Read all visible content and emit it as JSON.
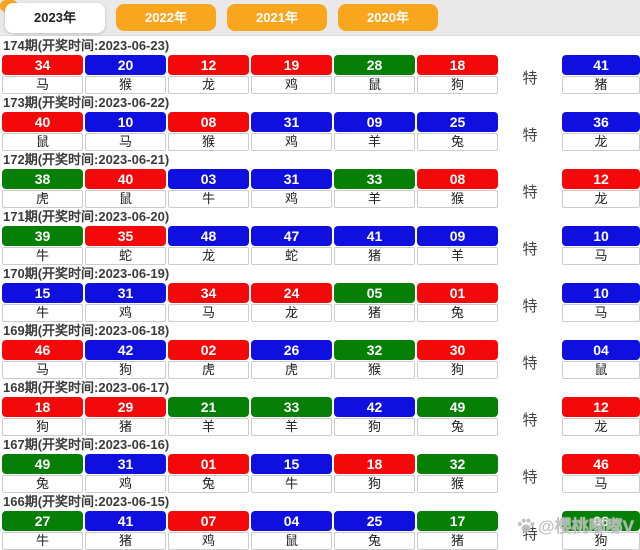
{
  "tabbar": {
    "tabs": [
      {
        "label": "2023年",
        "active": true
      },
      {
        "label": "2022年",
        "active": false
      },
      {
        "label": "2021年",
        "active": false
      },
      {
        "label": "2020年",
        "active": false
      }
    ]
  },
  "special_label": "特",
  "colors": {
    "red": "#f30909",
    "blue": "#0f0fe0",
    "green": "#067f06",
    "orange": "#f9a51e"
  },
  "watermark": {
    "icon": "paw-icon",
    "text": "@樱桃嘟嘟V"
  },
  "draws": [
    {
      "title": "174期(开奖时间:2023-06-23)",
      "numbers": [
        {
          "value": "34",
          "zodiac": "马",
          "color": "red"
        },
        {
          "value": "20",
          "zodiac": "猴",
          "color": "blue"
        },
        {
          "value": "12",
          "zodiac": "龙",
          "color": "red"
        },
        {
          "value": "19",
          "zodiac": "鸡",
          "color": "red"
        },
        {
          "value": "28",
          "zodiac": "鼠",
          "color": "green"
        },
        {
          "value": "18",
          "zodiac": "狗",
          "color": "red"
        }
      ],
      "special": {
        "value": "41",
        "zodiac": "猪",
        "color": "blue"
      }
    },
    {
      "title": "173期(开奖时间:2023-06-22)",
      "numbers": [
        {
          "value": "40",
          "zodiac": "鼠",
          "color": "red"
        },
        {
          "value": "10",
          "zodiac": "马",
          "color": "blue"
        },
        {
          "value": "08",
          "zodiac": "猴",
          "color": "red"
        },
        {
          "value": "31",
          "zodiac": "鸡",
          "color": "blue"
        },
        {
          "value": "09",
          "zodiac": "羊",
          "color": "blue"
        },
        {
          "value": "25",
          "zodiac": "兔",
          "color": "blue"
        }
      ],
      "special": {
        "value": "36",
        "zodiac": "龙",
        "color": "blue"
      }
    },
    {
      "title": "172期(开奖时间:2023-06-21)",
      "numbers": [
        {
          "value": "38",
          "zodiac": "虎",
          "color": "green"
        },
        {
          "value": "40",
          "zodiac": "鼠",
          "color": "red"
        },
        {
          "value": "03",
          "zodiac": "牛",
          "color": "blue"
        },
        {
          "value": "31",
          "zodiac": "鸡",
          "color": "blue"
        },
        {
          "value": "33",
          "zodiac": "羊",
          "color": "green"
        },
        {
          "value": "08",
          "zodiac": "猴",
          "color": "red"
        }
      ],
      "special": {
        "value": "12",
        "zodiac": "龙",
        "color": "red"
      }
    },
    {
      "title": "171期(开奖时间:2023-06-20)",
      "numbers": [
        {
          "value": "39",
          "zodiac": "牛",
          "color": "green"
        },
        {
          "value": "35",
          "zodiac": "蛇",
          "color": "red"
        },
        {
          "value": "48",
          "zodiac": "龙",
          "color": "blue"
        },
        {
          "value": "47",
          "zodiac": "蛇",
          "color": "blue"
        },
        {
          "value": "41",
          "zodiac": "猪",
          "color": "blue"
        },
        {
          "value": "09",
          "zodiac": "羊",
          "color": "blue"
        }
      ],
      "special": {
        "value": "10",
        "zodiac": "马",
        "color": "blue"
      }
    },
    {
      "title": "170期(开奖时间:2023-06-19)",
      "numbers": [
        {
          "value": "15",
          "zodiac": "牛",
          "color": "blue"
        },
        {
          "value": "31",
          "zodiac": "鸡",
          "color": "blue"
        },
        {
          "value": "34",
          "zodiac": "马",
          "color": "red"
        },
        {
          "value": "24",
          "zodiac": "龙",
          "color": "red"
        },
        {
          "value": "05",
          "zodiac": "猪",
          "color": "green"
        },
        {
          "value": "01",
          "zodiac": "兔",
          "color": "red"
        }
      ],
      "special": {
        "value": "10",
        "zodiac": "马",
        "color": "blue"
      }
    },
    {
      "title": "169期(开奖时间:2023-06-18)",
      "numbers": [
        {
          "value": "46",
          "zodiac": "马",
          "color": "red"
        },
        {
          "value": "42",
          "zodiac": "狗",
          "color": "blue"
        },
        {
          "value": "02",
          "zodiac": "虎",
          "color": "red"
        },
        {
          "value": "26",
          "zodiac": "虎",
          "color": "blue"
        },
        {
          "value": "32",
          "zodiac": "猴",
          "color": "green"
        },
        {
          "value": "30",
          "zodiac": "狗",
          "color": "red"
        }
      ],
      "special": {
        "value": "04",
        "zodiac": "鼠",
        "color": "blue"
      }
    },
    {
      "title": "168期(开奖时间:2023-06-17)",
      "numbers": [
        {
          "value": "18",
          "zodiac": "狗",
          "color": "red"
        },
        {
          "value": "29",
          "zodiac": "猪",
          "color": "red"
        },
        {
          "value": "21",
          "zodiac": "羊",
          "color": "green"
        },
        {
          "value": "33",
          "zodiac": "羊",
          "color": "green"
        },
        {
          "value": "42",
          "zodiac": "狗",
          "color": "blue"
        },
        {
          "value": "49",
          "zodiac": "兔",
          "color": "green"
        }
      ],
      "special": {
        "value": "12",
        "zodiac": "龙",
        "color": "red"
      }
    },
    {
      "title": "167期(开奖时间:2023-06-16)",
      "numbers": [
        {
          "value": "49",
          "zodiac": "兔",
          "color": "green"
        },
        {
          "value": "31",
          "zodiac": "鸡",
          "color": "blue"
        },
        {
          "value": "01",
          "zodiac": "兔",
          "color": "red"
        },
        {
          "value": "15",
          "zodiac": "牛",
          "color": "blue"
        },
        {
          "value": "18",
          "zodiac": "狗",
          "color": "red"
        },
        {
          "value": "32",
          "zodiac": "猴",
          "color": "green"
        }
      ],
      "special": {
        "value": "46",
        "zodiac": "马",
        "color": "red"
      }
    },
    {
      "title": "166期(开奖时间:2023-06-15)",
      "numbers": [
        {
          "value": "27",
          "zodiac": "牛",
          "color": "green"
        },
        {
          "value": "41",
          "zodiac": "猪",
          "color": "blue"
        },
        {
          "value": "07",
          "zodiac": "鸡",
          "color": "red"
        },
        {
          "value": "04",
          "zodiac": "鼠",
          "color": "blue"
        },
        {
          "value": "25",
          "zodiac": "兔",
          "color": "blue"
        },
        {
          "value": "17",
          "zodiac": "猪",
          "color": "green"
        }
      ],
      "special": {
        "value": "06",
        "zodiac": "狗",
        "color": "green"
      }
    }
  ]
}
